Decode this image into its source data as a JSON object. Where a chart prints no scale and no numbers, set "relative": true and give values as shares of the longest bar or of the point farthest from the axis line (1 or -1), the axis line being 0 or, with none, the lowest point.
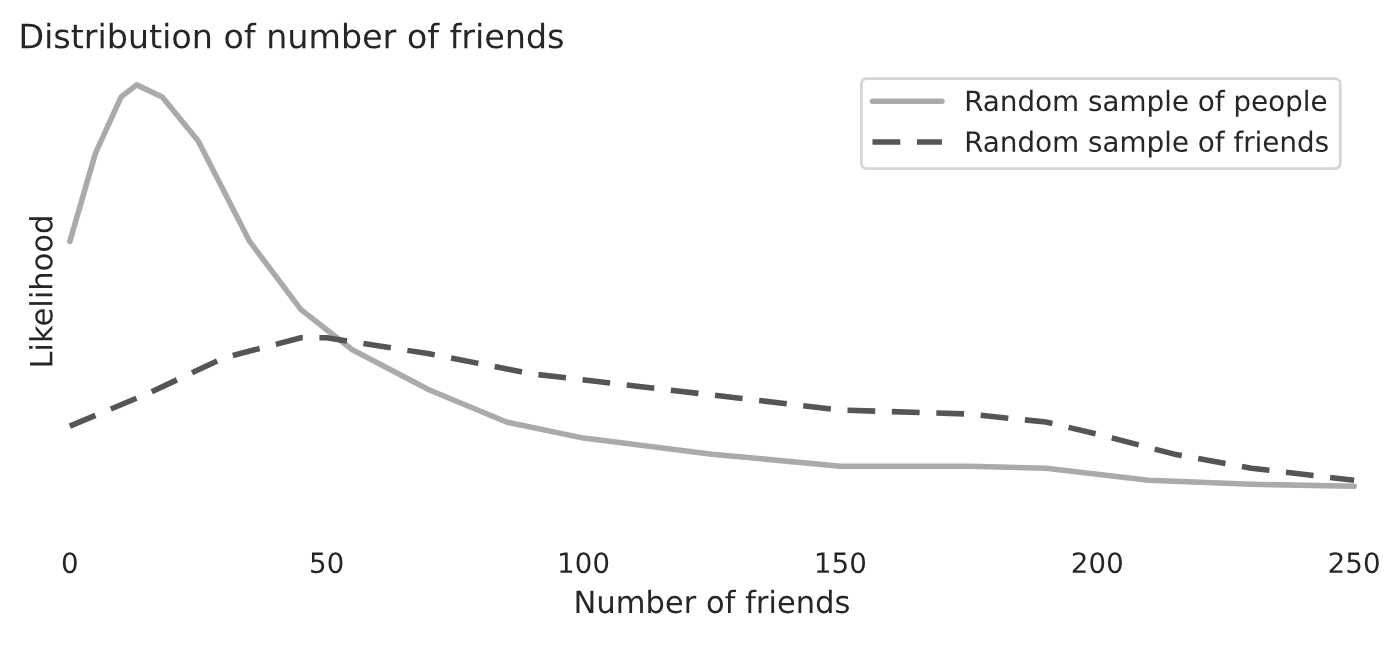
{
  "chart_data": {
    "type": "line",
    "title": "Distribution of number of friends",
    "xlabel": "Number of friends",
    "ylabel": "Likelihood",
    "relative": true,
    "xlim": [
      0,
      250
    ],
    "xticks": [
      0,
      50,
      100,
      150,
      200,
      250
    ],
    "grid": false,
    "legend": "top right",
    "marker": "none",
    "series": [
      {
        "name": "Random sample of people",
        "color": "#aaaaaa",
        "line_style": "solid",
        "x": [
          0,
          5,
          10,
          13,
          18,
          25,
          35,
          45,
          55,
          70,
          85,
          100,
          125,
          150,
          175,
          190,
          210,
          230,
          250
        ],
        "values": [
          0.61,
          0.83,
          0.97,
          1,
          0.97,
          0.86,
          0.61,
          0.44,
          0.34,
          0.24,
          0.16,
          0.12,
          0.08,
          0.05,
          0.05,
          0.045,
          0.015,
          0.005,
          0
        ]
      },
      {
        "name": "Random sample of friends",
        "color": "#555555",
        "line_style": "dashed",
        "x": [
          0,
          15,
          30,
          45,
          50,
          70,
          90,
          110,
          130,
          150,
          175,
          190,
          200,
          215,
          230,
          250
        ],
        "values": [
          0.15,
          0.23,
          0.32,
          0.37,
          0.37,
          0.33,
          0.28,
          0.25,
          0.22,
          0.19,
          0.18,
          0.16,
          0.13,
          0.08,
          0.045,
          0.015
        ]
      }
    ]
  }
}
